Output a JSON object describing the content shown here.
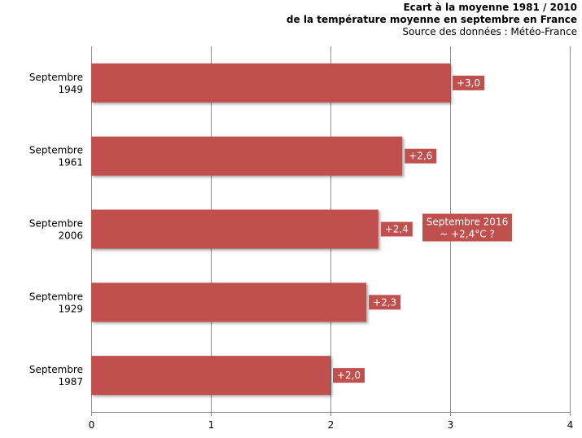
{
  "chart_data": {
    "type": "bar",
    "orientation": "horizontal",
    "title": "Ecart à la moyenne 1981 / 2010",
    "subtitle": "de la température moyenne en septembre en France",
    "source": "Source des données : Météo-France",
    "categories": [
      [
        "Septembre",
        "1949"
      ],
      [
        "Septembre",
        "1961"
      ],
      [
        "Septembre",
        "2006"
      ],
      [
        "Septembre",
        "1929"
      ],
      [
        "Septembre",
        "1987"
      ]
    ],
    "values": [
      3.0,
      2.6,
      2.4,
      2.3,
      2.0
    ],
    "value_labels": [
      "+3,0",
      "+2,6",
      "+2,4",
      "+2,3",
      "+2,0"
    ],
    "xlim": [
      0,
      4
    ],
    "x_ticks": [
      "0",
      "1",
      "2",
      "3",
      "4"
    ],
    "grid": true,
    "bar_color": "#c0504d",
    "annotation": {
      "lines": [
        "Septembre 2016",
        "~ +2,4°C ?"
      ],
      "category_index": 2
    }
  }
}
